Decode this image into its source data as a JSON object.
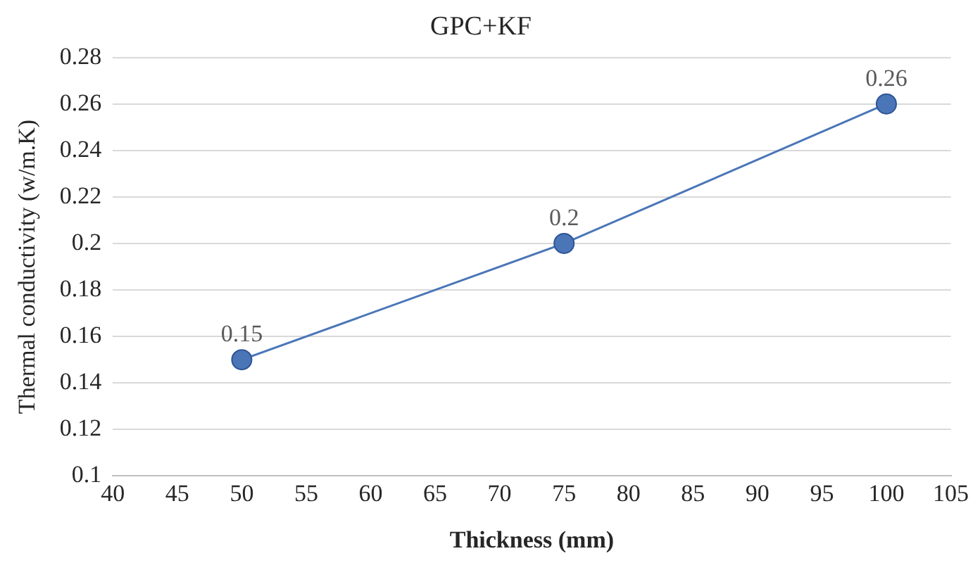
{
  "chart_data": {
    "type": "scatter",
    "title": "GPC+KF",
    "xlabel": "Thickness (mm)",
    "ylabel": "Thermal conductivity (w/m.K)",
    "x": [
      50,
      75,
      100
    ],
    "series": [
      {
        "type": "line",
        "color": "#4a76b8",
        "values": [
          0.15,
          0.2,
          0.26
        ]
      }
    ],
    "xlim": [
      40,
      105
    ],
    "xticks": [
      40,
      45,
      50,
      55,
      60,
      65,
      70,
      75,
      80,
      85,
      90,
      95,
      100,
      105
    ],
    "ylim": [
      0.1,
      0.28
    ],
    "yticks": [
      0.1,
      0.12,
      0.14,
      0.16,
      0.18,
      0.2,
      0.22,
      0.24,
      0.26,
      0.28
    ],
    "grid": "y",
    "legend": false,
    "marker": "circle",
    "line_style": "solid",
    "data_labels": true
  }
}
